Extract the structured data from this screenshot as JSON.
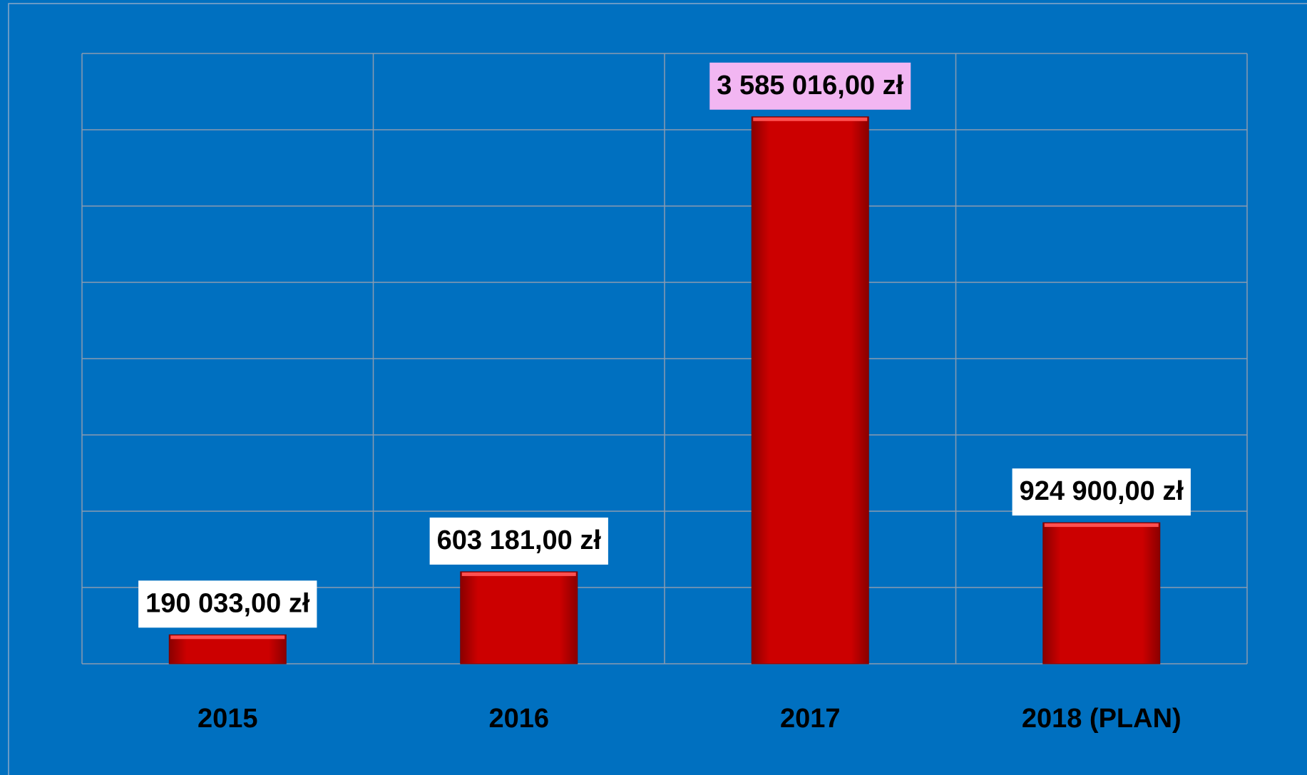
{
  "chart_data": {
    "type": "bar",
    "categories": [
      "2015",
      "2016",
      "2017",
      "2018 (PLAN)"
    ],
    "values": [
      190033,
      603181,
      3585016,
      924900
    ],
    "value_labels": [
      "190 033,00 zł",
      "603 181,00 zł",
      "3 585 016,00 zł",
      "924 900,00 zł"
    ],
    "value_label_backgrounds": [
      "#ffffff",
      "#ffffff",
      "#f2b6f2",
      "#ffffff"
    ],
    "color": "#cc0000",
    "background": "#0070c0",
    "ylim": [
      0,
      4000000
    ],
    "yticks": [
      0,
      500000,
      1000000,
      1500000,
      2000000,
      2500000,
      3000000,
      3500000,
      4000000
    ],
    "grid": true
  }
}
